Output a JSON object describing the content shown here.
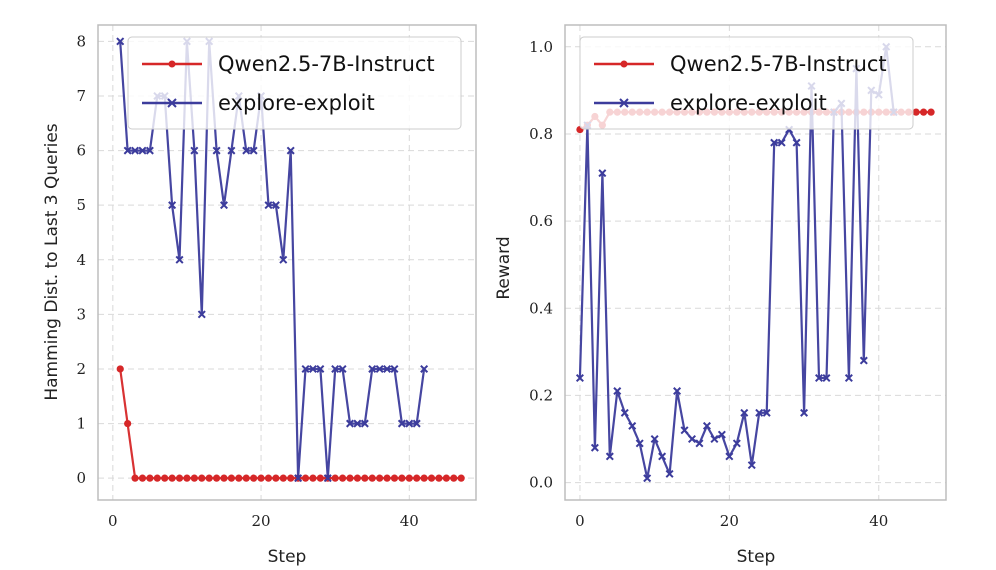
{
  "chart_data": [
    {
      "type": "line",
      "xlabel": "Step",
      "ylabel": "Hamming Dist. to Last 3 Queries",
      "xlim": [
        -2,
        49
      ],
      "ylim": [
        -0.4,
        8.3
      ],
      "xticks": [
        0,
        20,
        40
      ],
      "yticks": [
        0,
        1,
        2,
        3,
        4,
        5,
        6,
        7,
        8
      ],
      "ytick_labels": [
        "0",
        "1",
        "2",
        "3",
        "4",
        "5",
        "6",
        "7",
        "8"
      ],
      "grid": true,
      "legend_position": "top-right",
      "series": [
        {
          "name": "Qwen2.5-7B-Instruct",
          "color": "#d62728",
          "marker": "dot",
          "x": [
            1,
            2,
            3,
            4,
            5,
            6,
            7,
            8,
            9,
            10,
            11,
            12,
            13,
            14,
            15,
            16,
            17,
            18,
            19,
            20,
            21,
            22,
            23,
            24,
            25,
            26,
            27,
            28,
            29,
            30,
            31,
            32,
            33,
            34,
            35,
            36,
            37,
            38,
            39,
            40,
            41,
            42,
            43,
            44,
            45,
            46,
            47
          ],
          "y": [
            2,
            1,
            0,
            0,
            0,
            0,
            0,
            0,
            0,
            0,
            0,
            0,
            0,
            0,
            0,
            0,
            0,
            0,
            0,
            0,
            0,
            0,
            0,
            0,
            0,
            0,
            0,
            0,
            0,
            0,
            0,
            0,
            0,
            0,
            0,
            0,
            0,
            0,
            0,
            0,
            0,
            0,
            0,
            0,
            0,
            0,
            0
          ]
        },
        {
          "name": "explore-exploit",
          "color": "#3c3c9c",
          "marker": "x",
          "x": [
            1,
            2,
            3,
            4,
            5,
            6,
            7,
            8,
            9,
            10,
            11,
            12,
            13,
            14,
            15,
            16,
            17,
            18,
            19,
            20,
            21,
            22,
            23,
            24,
            25,
            26,
            27,
            28,
            29,
            30,
            31,
            32,
            33,
            34,
            35,
            36,
            37,
            38,
            39,
            40,
            41,
            42
          ],
          "y": [
            8,
            6,
            6,
            6,
            6,
            7,
            7,
            5,
            4,
            8,
            6,
            3,
            8,
            6,
            5,
            6,
            7,
            6,
            6,
            7,
            5,
            5,
            4,
            6,
            0,
            2,
            2,
            2,
            0,
            2,
            2,
            1,
            1,
            1,
            2,
            2,
            2,
            2,
            1,
            1,
            1,
            2
          ]
        }
      ]
    },
    {
      "type": "line",
      "xlabel": "Step",
      "ylabel": "Reward",
      "xlim": [
        -2,
        49
      ],
      "ylim": [
        -0.04,
        1.05
      ],
      "xticks": [
        0,
        20,
        40
      ],
      "yticks": [
        0.0,
        0.2,
        0.4,
        0.6,
        0.8,
        1.0
      ],
      "ytick_labels": [
        "0.0",
        "0.2",
        "0.4",
        "0.6",
        "0.8",
        "1.0"
      ],
      "grid": true,
      "legend_position": "top-right",
      "series": [
        {
          "name": "Qwen2.5-7B-Instruct",
          "color": "#d62728",
          "marker": "dot",
          "x": [
            0,
            1,
            2,
            3,
            4,
            5,
            6,
            7,
            8,
            9,
            10,
            11,
            12,
            13,
            14,
            15,
            16,
            17,
            18,
            19,
            20,
            21,
            22,
            23,
            24,
            25,
            26,
            27,
            28,
            29,
            30,
            31,
            32,
            33,
            34,
            35,
            36,
            37,
            38,
            39,
            40,
            41,
            42,
            43,
            44,
            45,
            46,
            47
          ],
          "y": [
            0.81,
            0.82,
            0.84,
            0.82,
            0.85,
            0.85,
            0.85,
            0.85,
            0.85,
            0.85,
            0.85,
            0.85,
            0.85,
            0.85,
            0.85,
            0.85,
            0.85,
            0.85,
            0.85,
            0.85,
            0.85,
            0.85,
            0.85,
            0.85,
            0.85,
            0.85,
            0.85,
            0.85,
            0.85,
            0.85,
            0.85,
            0.85,
            0.85,
            0.85,
            0.85,
            0.85,
            0.85,
            0.85,
            0.85,
            0.85,
            0.85,
            0.85,
            0.85,
            0.85,
            0.85,
            0.85,
            0.85,
            0.85
          ]
        },
        {
          "name": "explore-exploit",
          "color": "#3c3c9c",
          "marker": "x",
          "x": [
            0,
            1,
            2,
            3,
            4,
            5,
            6,
            7,
            8,
            9,
            10,
            11,
            12,
            13,
            14,
            15,
            16,
            17,
            18,
            19,
            20,
            21,
            22,
            23,
            24,
            25,
            26,
            27,
            28,
            29,
            30,
            31,
            32,
            33,
            34,
            35,
            36,
            37,
            38,
            39,
            40,
            41,
            42
          ],
          "y": [
            0.24,
            0.82,
            0.08,
            0.71,
            0.06,
            0.21,
            0.16,
            0.13,
            0.09,
            0.01,
            0.1,
            0.06,
            0.02,
            0.21,
            0.12,
            0.1,
            0.09,
            0.13,
            0.1,
            0.11,
            0.06,
            0.09,
            0.16,
            0.04,
            0.16,
            0.16,
            0.78,
            0.78,
            0.81,
            0.78,
            0.16,
            0.91,
            0.24,
            0.24,
            0.85,
            0.87,
            0.24,
            0.95,
            0.28,
            0.9,
            0.89,
            1.0,
            0.85
          ]
        }
      ]
    }
  ]
}
